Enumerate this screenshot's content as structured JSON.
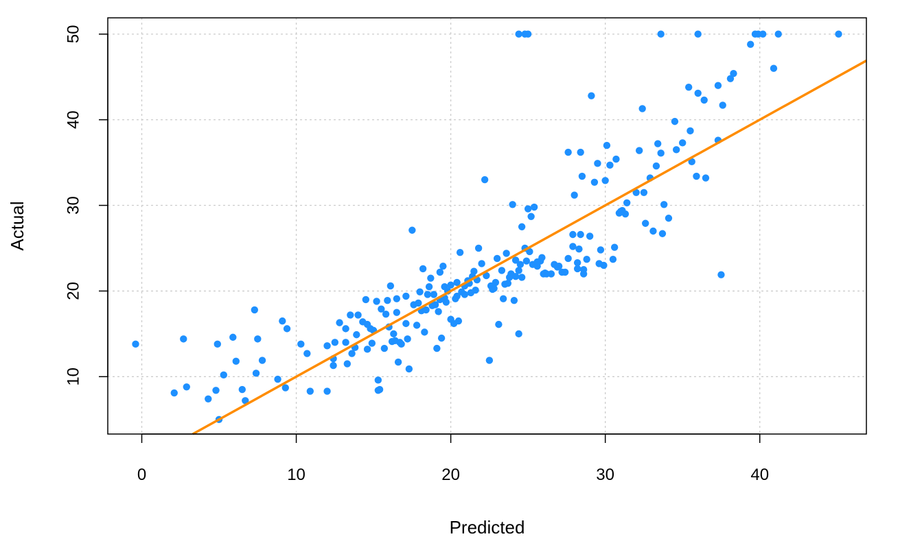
{
  "chart_data": {
    "type": "scatter",
    "xlabel": "Predicted",
    "ylabel": "Actual",
    "xlim": [
      -2.2,
      46.9
    ],
    "ylim": [
      3.3,
      51.9
    ],
    "x_ticks": [
      0,
      10,
      20,
      30,
      40
    ],
    "y_ticks": [
      10,
      20,
      30,
      40,
      50
    ],
    "grid": true,
    "colors": {
      "points": "#1e90ff",
      "fit_line": "#ff8c00",
      "grid": "#cccccc",
      "axes": "#000000"
    },
    "fit_line": {
      "intercept": 0,
      "slope": 1
    },
    "points": [
      [
        -0.4,
        13.8
      ],
      [
        2.1,
        8.1
      ],
      [
        2.7,
        14.4
      ],
      [
        2.9,
        8.8
      ],
      [
        4.3,
        7.4
      ],
      [
        4.8,
        8.4
      ],
      [
        4.9,
        13.8
      ],
      [
        5.0,
        5.0
      ],
      [
        5.3,
        10.2
      ],
      [
        5.9,
        14.6
      ],
      [
        6.1,
        11.8
      ],
      [
        6.5,
        8.5
      ],
      [
        6.7,
        7.2
      ],
      [
        7.3,
        17.8
      ],
      [
        7.4,
        10.4
      ],
      [
        7.5,
        14.4
      ],
      [
        7.8,
        11.9
      ],
      [
        8.8,
        9.7
      ],
      [
        9.1,
        16.5
      ],
      [
        9.3,
        8.7
      ],
      [
        9.4,
        15.6
      ],
      [
        10.3,
        13.8
      ],
      [
        10.7,
        12.7
      ],
      [
        10.9,
        8.3
      ],
      [
        12.0,
        8.3
      ],
      [
        12.0,
        13.6
      ],
      [
        12.4,
        11.3
      ],
      [
        12.5,
        14.0
      ],
      [
        12.8,
        16.3
      ],
      [
        13.2,
        15.6
      ],
      [
        13.3,
        11.5
      ],
      [
        13.5,
        17.2
      ],
      [
        13.6,
        12.7
      ],
      [
        13.8,
        13.4
      ],
      [
        14.0,
        17.2
      ],
      [
        14.5,
        19.0
      ],
      [
        14.6,
        16.1
      ],
      [
        14.6,
        13.2
      ],
      [
        14.8,
        15.6
      ],
      [
        15.0,
        15.4
      ],
      [
        15.2,
        18.8
      ],
      [
        15.3,
        9.6
      ],
      [
        15.3,
        8.4
      ],
      [
        15.4,
        8.5
      ],
      [
        15.5,
        17.9
      ],
      [
        15.7,
        13.3
      ],
      [
        15.8,
        17.3
      ],
      [
        16.1,
        20.6
      ],
      [
        16.2,
        14.1
      ],
      [
        16.3,
        15.0
      ],
      [
        16.5,
        19.1
      ],
      [
        16.5,
        17.5
      ],
      [
        16.6,
        11.7
      ],
      [
        16.8,
        13.8
      ],
      [
        17.1,
        19.4
      ],
      [
        17.3,
        10.9
      ],
      [
        17.5,
        27.1
      ],
      [
        17.6,
        18.4
      ],
      [
        17.8,
        16.0
      ],
      [
        18.0,
        19.9
      ],
      [
        18.1,
        17.7
      ],
      [
        18.2,
        22.6
      ],
      [
        18.3,
        15.2
      ],
      [
        18.5,
        19.6
      ],
      [
        18.7,
        21.5
      ],
      [
        18.8,
        18.3
      ],
      [
        19.0,
        18.4
      ],
      [
        19.1,
        13.3
      ],
      [
        19.2,
        17.6
      ],
      [
        19.3,
        22.2
      ],
      [
        19.4,
        14.5
      ],
      [
        19.5,
        22.9
      ],
      [
        19.6,
        19.2
      ],
      [
        19.7,
        18.7
      ],
      [
        20.0,
        16.7
      ],
      [
        20.0,
        20.7
      ],
      [
        20.2,
        16.2
      ],
      [
        20.4,
        19.4
      ],
      [
        20.5,
        16.5
      ],
      [
        20.6,
        24.5
      ],
      [
        20.7,
        19.9
      ],
      [
        20.9,
        20.6
      ],
      [
        21.1,
        21.2
      ],
      [
        21.3,
        19.8
      ],
      [
        21.4,
        21.7
      ],
      [
        21.6,
        20.1
      ],
      [
        21.8,
        25.0
      ],
      [
        22.0,
        23.2
      ],
      [
        22.2,
        33.0
      ],
      [
        22.3,
        21.8
      ],
      [
        22.5,
        11.9
      ],
      [
        22.6,
        20.6
      ],
      [
        22.7,
        20.2
      ],
      [
        23.0,
        23.8
      ],
      [
        23.1,
        16.1
      ],
      [
        23.3,
        22.4
      ],
      [
        23.4,
        19.1
      ],
      [
        23.5,
        20.8
      ],
      [
        23.6,
        24.4
      ],
      [
        23.8,
        21.6
      ],
      [
        24.0,
        30.1
      ],
      [
        24.1,
        18.9
      ],
      [
        24.2,
        21.7
      ],
      [
        24.4,
        15.0
      ],
      [
        24.5,
        23.1
      ],
      [
        24.6,
        27.5
      ],
      [
        24.6,
        21.6
      ],
      [
        24.8,
        25.0
      ],
      [
        24.9,
        23.5
      ],
      [
        25.0,
        29.6
      ],
      [
        25.1,
        24.6
      ],
      [
        25.2,
        28.7
      ],
      [
        25.3,
        23.1
      ],
      [
        25.4,
        29.8
      ],
      [
        25.6,
        22.9
      ],
      [
        25.8,
        23.5
      ],
      [
        26.0,
        22.0
      ],
      [
        26.2,
        22.0
      ],
      [
        26.5,
        22.0
      ],
      [
        26.7,
        23.1
      ],
      [
        27.0,
        22.9
      ],
      [
        27.2,
        22.2
      ],
      [
        27.4,
        22.2
      ],
      [
        27.6,
        36.2
      ],
      [
        27.9,
        26.6
      ],
      [
        28.0,
        31.2
      ],
      [
        28.2,
        23.3
      ],
      [
        28.3,
        24.9
      ],
      [
        28.4,
        36.2
      ],
      [
        28.5,
        33.4
      ],
      [
        28.6,
        22.5
      ],
      [
        28.8,
        23.7
      ],
      [
        29.0,
        26.4
      ],
      [
        29.1,
        42.8
      ],
      [
        29.3,
        32.7
      ],
      [
        29.5,
        34.9
      ],
      [
        29.7,
        24.8
      ],
      [
        29.9,
        23.0
      ],
      [
        30.0,
        32.9
      ],
      [
        30.1,
        37.0
      ],
      [
        30.3,
        34.7
      ],
      [
        30.5,
        23.7
      ],
      [
        30.6,
        25.1
      ],
      [
        30.7,
        35.4
      ],
      [
        30.9,
        29.1
      ],
      [
        31.1,
        29.4
      ],
      [
        31.3,
        29.0
      ],
      [
        31.4,
        30.3
      ],
      [
        32.0,
        31.5
      ],
      [
        32.2,
        36.4
      ],
      [
        32.4,
        41.3
      ],
      [
        32.5,
        31.5
      ],
      [
        32.6,
        27.9
      ],
      [
        32.9,
        33.2
      ],
      [
        33.1,
        27.0
      ],
      [
        33.3,
        34.6
      ],
      [
        33.4,
        37.2
      ],
      [
        33.6,
        36.1
      ],
      [
        33.7,
        26.7
      ],
      [
        33.8,
        30.1
      ],
      [
        34.1,
        28.5
      ],
      [
        34.5,
        39.8
      ],
      [
        34.6,
        36.5
      ],
      [
        35.0,
        37.3
      ],
      [
        35.4,
        43.8
      ],
      [
        35.5,
        38.7
      ],
      [
        35.6,
        35.1
      ],
      [
        35.9,
        33.4
      ],
      [
        36.0,
        43.1
      ],
      [
        36.4,
        42.3
      ],
      [
        36.5,
        33.2
      ],
      [
        37.3,
        44.0
      ],
      [
        37.3,
        37.6
      ],
      [
        37.5,
        21.9
      ],
      [
        37.6,
        41.7
      ],
      [
        38.1,
        44.8
      ],
      [
        38.3,
        45.4
      ],
      [
        39.4,
        48.8
      ],
      [
        40.9,
        46.0
      ],
      [
        24.4,
        50.0
      ],
      [
        24.8,
        50.0
      ],
      [
        25.0,
        50.0
      ],
      [
        33.6,
        50.0
      ],
      [
        36.0,
        50.0
      ],
      [
        39.7,
        50.0
      ],
      [
        39.9,
        50.0
      ],
      [
        40.2,
        50.0
      ],
      [
        41.2,
        50.0
      ],
      [
        45.1,
        50.0
      ],
      [
        27.9,
        25.2
      ],
      [
        28.4,
        26.6
      ],
      [
        28.6,
        22.0
      ],
      [
        27.6,
        23.8
      ],
      [
        26.1,
        22.1
      ],
      [
        25.9,
        23.9
      ],
      [
        25.6,
        23.4
      ],
      [
        24.4,
        22.4
      ],
      [
        23.9,
        22.0
      ],
      [
        22.8,
        20.3
      ],
      [
        21.7,
        21.3
      ],
      [
        21.2,
        20.9
      ],
      [
        20.9,
        19.6
      ],
      [
        20.3,
        19.1
      ],
      [
        19.8,
        20.0
      ],
      [
        19.3,
        19.0
      ],
      [
        18.9,
        19.6
      ],
      [
        18.4,
        17.8
      ],
      [
        17.9,
        18.6
      ],
      [
        17.1,
        16.2
      ],
      [
        16.7,
        14.0
      ],
      [
        16.4,
        14.2
      ],
      [
        16.0,
        15.8
      ],
      [
        14.9,
        13.9
      ],
      [
        13.9,
        14.9
      ],
      [
        13.2,
        14.0
      ],
      [
        12.4,
        12.1
      ],
      [
        14.3,
        16.4
      ],
      [
        15.9,
        18.9
      ],
      [
        17.2,
        14.4
      ],
      [
        18.6,
        20.5
      ],
      [
        19.6,
        20.5
      ],
      [
        20.4,
        21.0
      ],
      [
        21.5,
        22.3
      ],
      [
        22.9,
        21.0
      ],
      [
        23.7,
        20.9
      ],
      [
        24.2,
        23.6
      ],
      [
        26.9,
        22.8
      ],
      [
        28.2,
        22.6
      ],
      [
        29.6,
        23.2
      ],
      [
        31.0,
        29.3
      ]
    ]
  }
}
